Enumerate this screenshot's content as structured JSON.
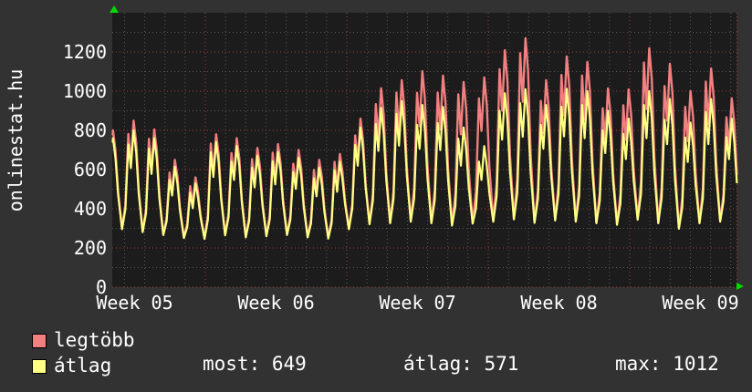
{
  "app": {
    "vertical_title": "onlinestat.hu"
  },
  "colors": {
    "background": "#323232",
    "plot_background": "#1c1c1c",
    "grid_minor": "#565656",
    "grid_major_red": "#a03c3c",
    "series_max_pink": "#f28080",
    "series_avg_yellow": "#ffff85",
    "text": "#ffffff",
    "axis_arrow_green": "#00d900"
  },
  "legend": {
    "items": [
      {
        "label": "legtöbb",
        "color": "#f28080"
      },
      {
        "label": "átlag",
        "color": "#ffff85"
      }
    ]
  },
  "stats": {
    "items": [
      {
        "label": "most:",
        "value": "649"
      },
      {
        "label": "átlag:",
        "value": "571"
      },
      {
        "label": "max:",
        "value": "1012"
      }
    ]
  },
  "chart_data": {
    "type": "line",
    "title": "onlinestat.hu",
    "xlabel": "",
    "ylabel": "",
    "grid": "dotted, minor every 100 (gray) and 1 day (gray), major every 200 (red) and 1 week (red)",
    "legend_position": "bottom-left",
    "x_axis": {
      "tick_labels": [
        "Week 05",
        "Week 06",
        "Week 07",
        "Week 08",
        "Week 09"
      ],
      "unit": "weeks, 7 daily cycles per week",
      "visible_days": 31
    },
    "y_axis": {
      "range": [
        0,
        1400
      ],
      "major_ticks": [
        0,
        200,
        400,
        600,
        800,
        1000,
        1200
      ],
      "minor_step": 100
    },
    "series": [
      {
        "name": "legtöbb",
        "role": "daily maximum online users",
        "color": "#f28080",
        "daily_peaks": [
          800,
          850,
          805,
          650,
          560,
          780,
          760,
          710,
          730,
          700,
          650,
          680,
          860,
          1015,
          1056,
          1102,
          1079,
          1047,
          1070,
          1209,
          1270,
          1056,
          1177,
          1149,
          1014,
          1009,
          1219,
          1140,
          1000,
          1116,
          963
        ]
      },
      {
        "name": "átlag",
        "role": "daily average online users",
        "color": "#ffff85",
        "daily_peaks": [
          760,
          800,
          760,
          615,
          530,
          740,
          720,
          670,
          690,
          660,
          610,
          640,
          815,
          915,
          950,
          930,
          920,
          815,
          720,
          990,
          1010,
          930,
          1012,
          1000,
          900,
          860,
          1000,
          960,
          840,
          960,
          860
        ]
      }
    ],
    "daily_troughs": [
      300,
      300,
      285,
      270,
      255,
      250,
      268,
      258,
      264,
      270,
      258,
      252,
      300,
      325,
      330,
      338,
      330,
      318,
      328,
      338,
      350,
      332,
      344,
      338,
      330,
      322,
      348,
      330,
      302,
      330,
      338
    ],
    "summary": {
      "most": 649,
      "atlag": 571,
      "max": 1012
    }
  }
}
